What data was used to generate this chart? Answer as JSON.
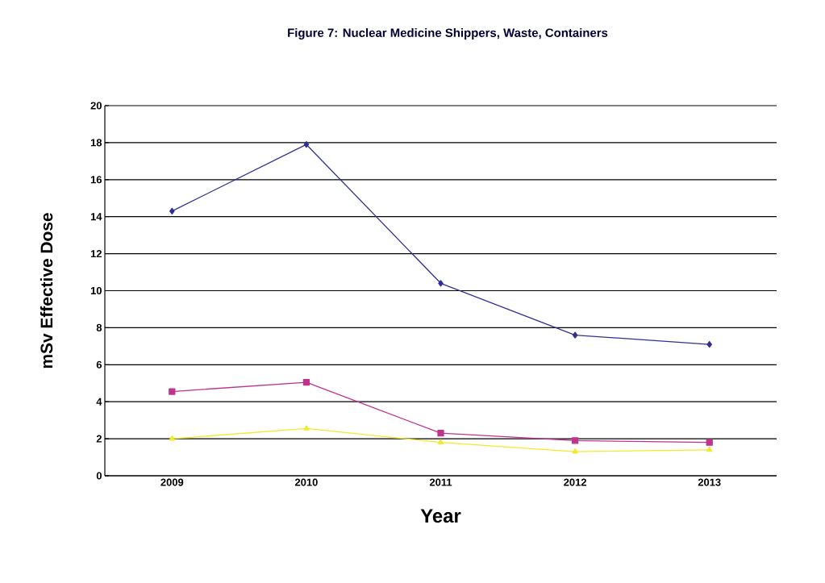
{
  "chart_data": {
    "type": "line",
    "title": "Figure 7:  Nuclear Medicine Shippers, Waste, Containers",
    "xlabel": "Year",
    "ylabel": "mSv Effective Dose",
    "categories": [
      "2009",
      "2010",
      "2011",
      "2012",
      "2013"
    ],
    "series": [
      {
        "color": "#2e3192",
        "marker": "diamond",
        "values": [
          14.3,
          17.9,
          10.4,
          7.6,
          7.1
        ]
      },
      {
        "color": "#c0338c",
        "marker": "square",
        "values": [
          4.55,
          5.05,
          2.3,
          1.9,
          1.8
        ]
      },
      {
        "color": "#f2ea2a",
        "marker": "triangle",
        "values": [
          2.0,
          2.55,
          1.8,
          1.3,
          1.4
        ]
      }
    ],
    "ylim": [
      0,
      20
    ],
    "yticks": [
      0,
      2,
      4,
      6,
      8,
      10,
      12,
      14,
      16,
      18,
      20
    ],
    "grid": "y",
    "line_style": "solid"
  }
}
